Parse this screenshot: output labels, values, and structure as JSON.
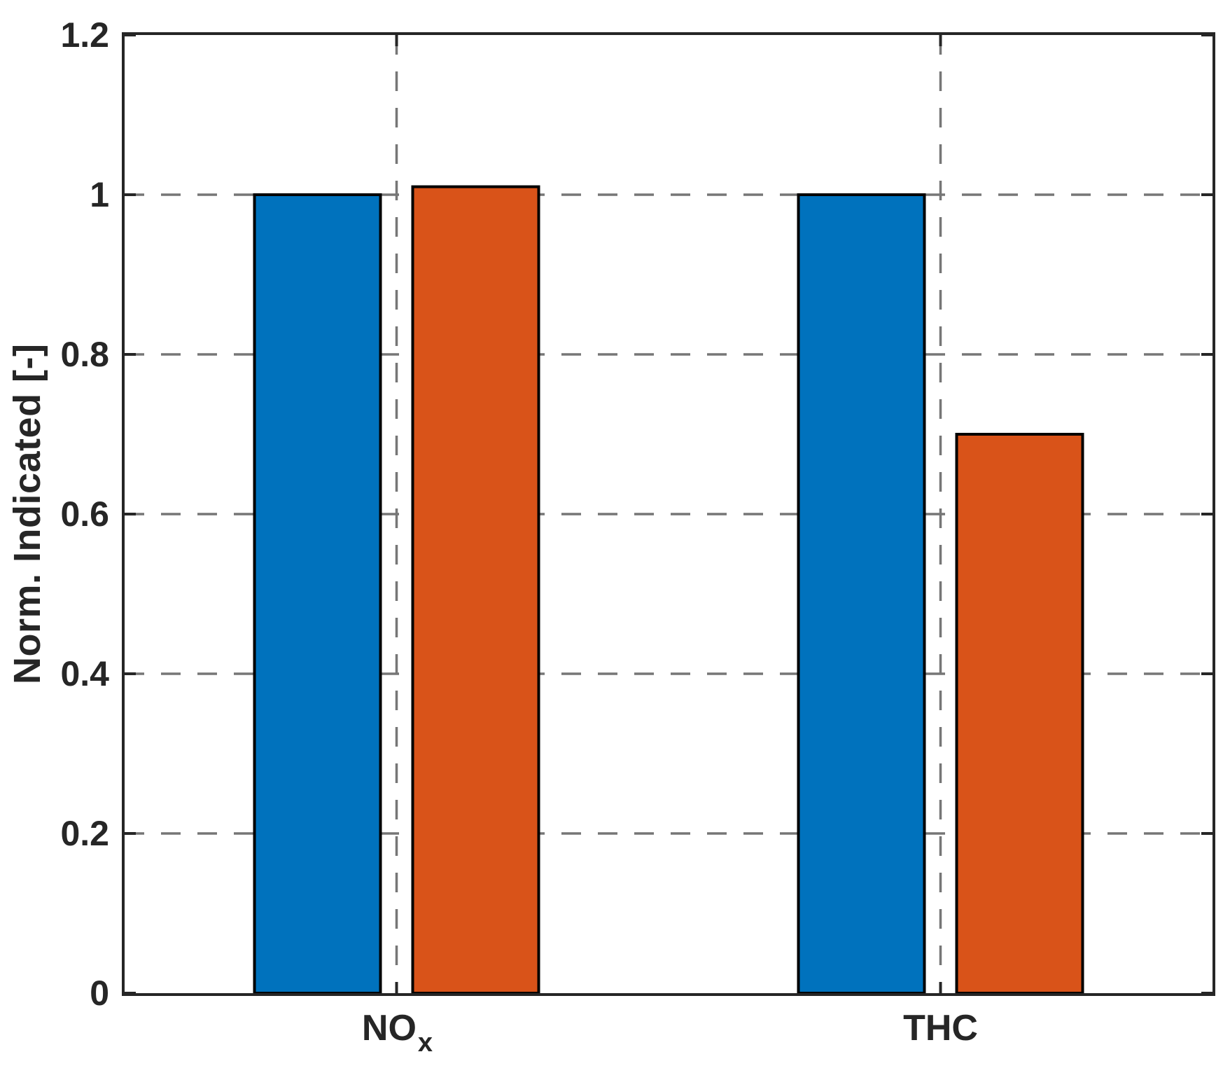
{
  "chart_data": {
    "type": "bar",
    "title": "",
    "xlabel": "",
    "ylabel": "Norm. Indicated [-]",
    "categories": [
      "NOx",
      "THC"
    ],
    "categories_rich": [
      {
        "base": "NO",
        "sub": "x"
      },
      {
        "base": "THC",
        "sub": ""
      }
    ],
    "series": [
      {
        "name": "blue-series",
        "color": "#0072BD",
        "values": [
          1.0,
          1.0
        ]
      },
      {
        "name": "orange-series",
        "color": "#D95319",
        "values": [
          1.01,
          0.7
        ]
      }
    ],
    "ylim": [
      0,
      1.2
    ],
    "yticks": [
      0,
      0.2,
      0.4,
      0.6,
      0.8,
      1,
      1.2
    ],
    "ytick_labels": [
      "0",
      "0.2",
      "0.4",
      "0.6",
      "0.8",
      "1",
      "1.2"
    ],
    "grid": true,
    "grid_style": "dashed",
    "legend_position": "none"
  },
  "style": {
    "axis_color": "#262626",
    "grid_color": "#767676",
    "bar_edge_color": "#000000",
    "background": "#ffffff"
  }
}
